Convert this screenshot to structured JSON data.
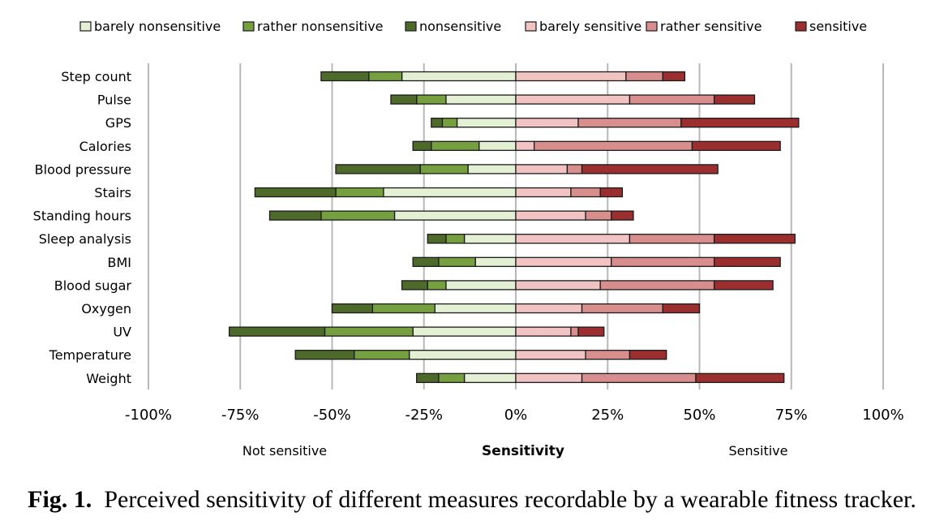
{
  "chart_data": {
    "type": "bar",
    "orientation": "horizontal",
    "stacked": "diverging",
    "categories": [
      "Step count",
      "Pulse",
      "GPS",
      "Calories",
      "Blood pressure",
      "Stairs",
      "Standing hours",
      "Sleep analysis",
      "BMI",
      "Blood sugar",
      "Oxygen",
      "UV",
      "Temperature",
      "Weight"
    ],
    "series": [
      {
        "name": "barely nonsensitive",
        "side": "negative",
        "color": "#e3f0d3",
        "values": [
          -31,
          -19,
          -16,
          -10,
          -13,
          -36,
          -33,
          -14,
          -11,
          -19,
          -22,
          -28,
          -29,
          -14
        ]
      },
      {
        "name": "rather nonsensitive",
        "side": "negative",
        "color": "#76a040",
        "values": [
          -9,
          -8,
          -4,
          -13,
          -13,
          -13,
          -20,
          -5,
          -10,
          -5,
          -17,
          -24,
          -15,
          -7
        ]
      },
      {
        "name": "nonsensitive",
        "side": "negative",
        "color": "#4e6a2a",
        "values": [
          -13,
          -7,
          -3,
          -5,
          -23,
          -22,
          -14,
          -5,
          -7,
          -7,
          -11,
          -26,
          -16,
          -6
        ]
      },
      {
        "name": "barely sensitive",
        "side": "positive",
        "color": "#f2c3c3",
        "values": [
          30,
          31,
          17,
          5,
          14,
          15,
          19,
          31,
          26,
          23,
          18,
          15,
          19,
          18
        ]
      },
      {
        "name": "rather sensitive",
        "side": "positive",
        "color": "#d98e8e",
        "values": [
          10,
          23,
          28,
          43,
          4,
          8,
          7,
          23,
          28,
          31,
          22,
          2,
          12,
          31
        ]
      },
      {
        "name": "sensitive",
        "side": "positive",
        "color": "#9b2f2f",
        "values": [
          6,
          11,
          32,
          24,
          37,
          6,
          6,
          22,
          18,
          16,
          10,
          7,
          10,
          24
        ]
      }
    ],
    "xlim": [
      -100,
      100
    ],
    "xticks": [
      -100,
      -75,
      -50,
      -25,
      0,
      25,
      50,
      75,
      100
    ],
    "tick_format": "percent",
    "xlabel": "Sensitivity",
    "xlabel_left": "Not sensitive",
    "xlabel_right": "Sensitive",
    "grid": "vertical",
    "legend_position": "top"
  },
  "caption": {
    "label": "Fig. 1.",
    "text": "Perceived sensitivity of different measures recordable by a wearable fitness tracker."
  }
}
